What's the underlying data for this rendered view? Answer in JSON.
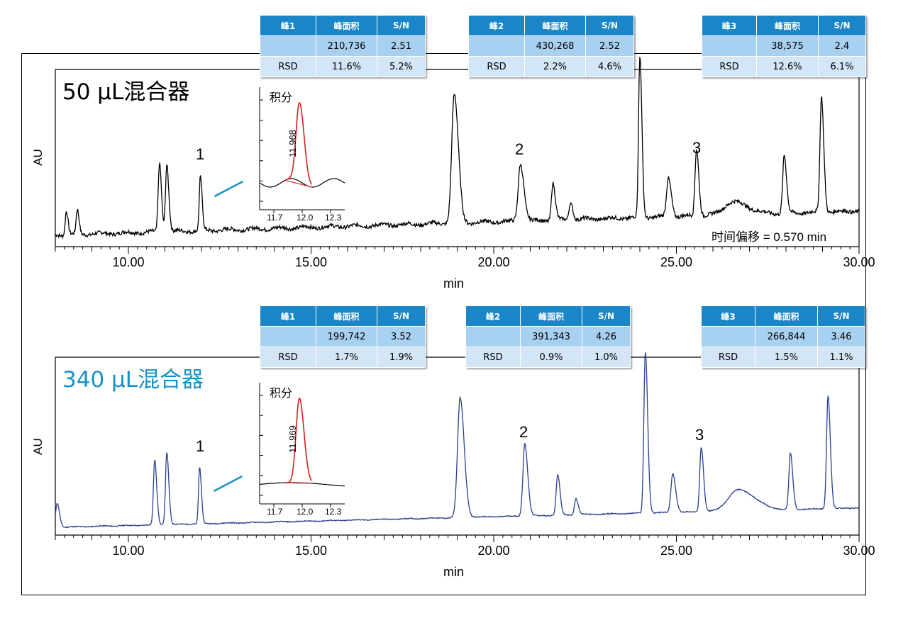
{
  "chart_data": [
    {
      "type": "line",
      "title": "50 μL混合器",
      "xlabel": "min",
      "ylabel": "AU",
      "xlim": [
        8.0,
        30.0
      ],
      "x_ticks": [
        "10.00",
        "15.00",
        "20.00",
        "25.00",
        "30.00"
      ],
      "x_tick_values": [
        10,
        15,
        20,
        25,
        30
      ],
      "line_color": "#000000",
      "baseline": {
        "start": 0.02,
        "end": 0.17
      },
      "peaks": [
        {
          "x": 8.3,
          "h": 0.15,
          "w": 0.03
        },
        {
          "x": 8.6,
          "h": 0.15,
          "w": 0.03
        },
        {
          "x": 10.85,
          "h": 0.43,
          "w": 0.035
        },
        {
          "x": 11.05,
          "h": 0.42,
          "w": 0.035
        },
        {
          "x": 11.97,
          "h": 0.33,
          "w": 0.03
        },
        {
          "x": 18.92,
          "h": 0.8,
          "w": 0.07
        },
        {
          "x": 20.73,
          "h": 0.36,
          "w": 0.06
        },
        {
          "x": 21.62,
          "h": 0.23,
          "w": 0.04
        },
        {
          "x": 22.1,
          "h": 0.11,
          "w": 0.04
        },
        {
          "x": 24.0,
          "h": 1.0,
          "w": 0.035
        },
        {
          "x": 24.78,
          "h": 0.24,
          "w": 0.05
        },
        {
          "x": 25.55,
          "h": 0.42,
          "w": 0.04
        },
        {
          "x": 26.55,
          "h": 0.08,
          "w": 0.25
        },
        {
          "x": 27.95,
          "h": 0.36,
          "w": 0.04
        },
        {
          "x": 28.97,
          "h": 0.72,
          "w": 0.04
        }
      ],
      "peak_labels": [
        {
          "label": "1",
          "x": 11.97
        },
        {
          "label": "2",
          "x": 20.73
        },
        {
          "label": "3",
          "x": 25.55
        }
      ],
      "annotation": "时间偏移 = 0.570 min",
      "inset": {
        "title": "积分",
        "peak_label": "11.968",
        "x_ticks": [
          "11.7",
          "12.0",
          "12.3"
        ],
        "x_tick_values": [
          11.7,
          12.0,
          12.3
        ],
        "xlim": [
          11.55,
          12.45
        ]
      },
      "tables": [
        {
          "headers": [
            "峰1",
            "峰面积",
            "S/N"
          ],
          "row1": [
            "",
            "210,736",
            "2.51"
          ],
          "row2": [
            "RSD",
            "11.6%",
            "5.2%"
          ]
        },
        {
          "headers": [
            "峰2",
            "峰面积",
            "S/N"
          ],
          "row1": [
            "",
            "430,268",
            "2.52"
          ],
          "row2": [
            "RSD",
            "2.2%",
            "4.6%"
          ]
        },
        {
          "headers": [
            "峰3",
            "峰面积",
            "S/N"
          ],
          "row1": [
            "",
            "38,575",
            "2.4"
          ],
          "row2": [
            "RSD",
            "12.6%",
            "6.1%"
          ]
        }
      ]
    },
    {
      "type": "line",
      "title": "340 μL混合器",
      "xlabel": "min",
      "ylabel": "AU",
      "xlim": [
        8.0,
        30.0
      ],
      "x_ticks": [
        "10.00",
        "15.00",
        "20.00",
        "25.00",
        "30.00"
      ],
      "x_tick_values": [
        10,
        15,
        20,
        25,
        30
      ],
      "line_color": "#2b3f8f",
      "baseline": {
        "start": 0.0,
        "end": 0.12
      },
      "peaks": [
        {
          "x": 8.05,
          "h": 0.15,
          "w": 0.04
        },
        {
          "x": 10.72,
          "h": 0.4,
          "w": 0.035
        },
        {
          "x": 11.05,
          "h": 0.45,
          "w": 0.035
        },
        {
          "x": 11.95,
          "h": 0.35,
          "w": 0.03
        },
        {
          "x": 19.08,
          "h": 0.74,
          "w": 0.07
        },
        {
          "x": 20.85,
          "h": 0.45,
          "w": 0.05
        },
        {
          "x": 21.75,
          "h": 0.25,
          "w": 0.04
        },
        {
          "x": 22.25,
          "h": 0.1,
          "w": 0.04
        },
        {
          "x": 24.15,
          "h": 1.0,
          "w": 0.04
        },
        {
          "x": 24.9,
          "h": 0.24,
          "w": 0.05
        },
        {
          "x": 25.68,
          "h": 0.4,
          "w": 0.04
        },
        {
          "x": 26.7,
          "h": 0.13,
          "w": 0.28
        },
        {
          "x": 28.12,
          "h": 0.35,
          "w": 0.04
        },
        {
          "x": 29.15,
          "h": 0.7,
          "w": 0.04
        }
      ],
      "peak_labels": [
        {
          "label": "1",
          "x": 11.95
        },
        {
          "label": "2",
          "x": 20.85
        },
        {
          "label": "3",
          "x": 25.68
        }
      ],
      "inset": {
        "title": "积分",
        "peak_label": "11.969",
        "x_ticks": [
          "11.7",
          "12.0",
          "12.3"
        ],
        "x_tick_values": [
          11.7,
          12.0,
          12.3
        ],
        "xlim": [
          11.55,
          12.45
        ]
      },
      "tables": [
        {
          "headers": [
            "峰1",
            "峰面积",
            "S/N"
          ],
          "row1": [
            "",
            "199,742",
            "3.52"
          ],
          "row2": [
            "RSD",
            "1.7%",
            "1.9%"
          ]
        },
        {
          "headers": [
            "峰2",
            "峰面积",
            "S/N"
          ],
          "row1": [
            "",
            "391,343",
            "4.26"
          ],
          "row2": [
            "RSD",
            "0.9%",
            "1.0%"
          ]
        },
        {
          "headers": [
            "峰3",
            "峰面积",
            "S/N"
          ],
          "row1": [
            "",
            "266,844",
            "3.46"
          ],
          "row2": [
            "RSD",
            "1.5%",
            "1.1%"
          ]
        }
      ]
    }
  ]
}
